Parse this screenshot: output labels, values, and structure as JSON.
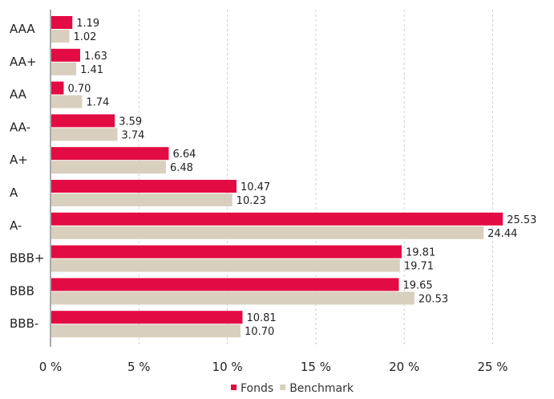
{
  "chart_data": {
    "type": "bar",
    "orientation": "horizontal",
    "title": "",
    "xlabel": "",
    "ylabel": "",
    "categories": [
      "AAA",
      "AA+",
      "AA",
      "AA-",
      "A+",
      "A",
      "A-",
      "BBB+",
      "BBB",
      "BBB-"
    ],
    "series": [
      {
        "name": "Fonds",
        "color": "#e30b43",
        "values": [
          1.19,
          1.63,
          0.7,
          3.59,
          6.64,
          10.47,
          25.53,
          19.81,
          19.65,
          10.81
        ],
        "labels": [
          "1.19",
          "1.63",
          "0.70",
          "3.59",
          "6.64",
          "10.47",
          "25.53",
          "19.81",
          "19.65",
          "10.81"
        ]
      },
      {
        "name": "Benchmark",
        "color": "#d8cfbe",
        "values": [
          1.02,
          1.41,
          1.74,
          3.74,
          6.48,
          10.23,
          24.44,
          19.71,
          20.53,
          10.7
        ],
        "labels": [
          "1.02",
          "1.41",
          "1.74",
          "3.74",
          "6.48",
          "10.23",
          "24.44",
          "19.71",
          "20.53",
          "10.70"
        ]
      }
    ],
    "xlim": [
      0,
      27
    ],
    "xticks": [
      0,
      5,
      10,
      15,
      20,
      25
    ],
    "xtick_labels": [
      "0 %",
      "5 %",
      "10 %",
      "15 %",
      "20 %",
      "25 %"
    ],
    "grid": "vertical-dashed",
    "legend_position": "bottom-center"
  }
}
